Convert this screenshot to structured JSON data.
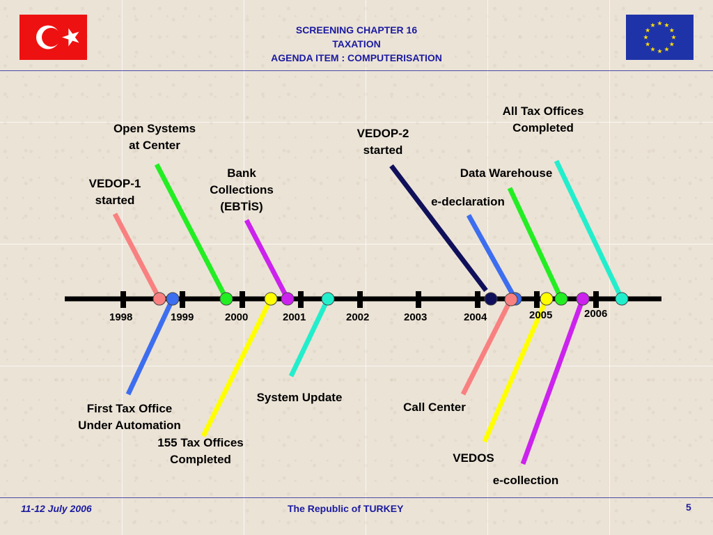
{
  "header": {
    "title_line1": "SCREENING CHAPTER 16",
    "title_line2": "TAXATION",
    "title_line3": "AGENDA ITEM :  COMPUTERISATION"
  },
  "footer": {
    "date": "11-12 July 2006",
    "country": "The Republic of TURKEY",
    "page": "5"
  },
  "timeline": {
    "years": [
      "1998",
      "1999",
      "2000",
      "2001",
      "2002",
      "2003",
      "2004",
      "2005",
      "2006"
    ],
    "events_above": [
      {
        "id": "vedop1",
        "text_line1": "VEDOP-1",
        "text_line2": "started",
        "color": "#f98080"
      },
      {
        "id": "open-systems",
        "text_line1": "Open Systems",
        "text_line2": "at Center",
        "color": "#22ee22"
      },
      {
        "id": "bank-collections",
        "text_line1": "Bank",
        "text_line2": "Collections",
        "text_line3": "(EBTİS)",
        "color": "#cc22ee"
      },
      {
        "id": "vedop2",
        "text_line1": "VEDOP-2",
        "text_line2": "started",
        "color": "#10105a"
      },
      {
        "id": "e-declaration",
        "text_line1": "e-declaration",
        "color": "#3d6ef0"
      },
      {
        "id": "data-warehouse",
        "text_line1": "Data Warehouse",
        "color": "#22ee22"
      },
      {
        "id": "all-tax-offices",
        "text_line1": "All Tax Offices",
        "text_line2": "Completed",
        "color": "#22eecc"
      }
    ],
    "events_below": [
      {
        "id": "first-tax-office",
        "text_line1": "First Tax Office",
        "text_line2": "Under Automation",
        "color": "#3d6ef0"
      },
      {
        "id": "155-tax-offices",
        "text_line1": "155 Tax Offices",
        "text_line2": "Completed",
        "color": "#ffff00"
      },
      {
        "id": "system-update",
        "text_line1": "System Update",
        "color": "#22eecc"
      },
      {
        "id": "call-center",
        "text_line1": "Call Center",
        "color": "#f98080"
      },
      {
        "id": "vedos",
        "text_line1": "VEDOS",
        "color": "#ffff00"
      },
      {
        "id": "e-collection",
        "text_line1": "e-collection",
        "color": "#cc22ee"
      }
    ]
  }
}
